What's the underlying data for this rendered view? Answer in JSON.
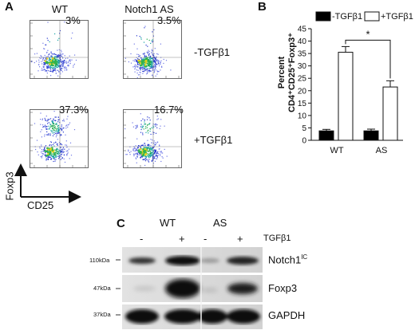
{
  "panel_a": {
    "letter": "A",
    "columns": [
      "WT",
      "Notch1 AS"
    ],
    "rows": [
      "-TGFβ1",
      "+TGFβ1"
    ],
    "percentages": [
      [
        "3%",
        "3.5%"
      ],
      [
        "37.3%",
        "16.7%"
      ]
    ],
    "y_axis_label": "Foxp3",
    "x_axis_label": "CD25"
  },
  "panel_b": {
    "letter": "B",
    "significance": "*"
  },
  "chart_data": {
    "type": "bar",
    "categories": [
      "WT",
      "AS"
    ],
    "series": [
      {
        "name": "-TGFβ1",
        "values": [
          3.8,
          3.8
        ],
        "errors": [
          0.6,
          0.7
        ],
        "fill": "#000000"
      },
      {
        "name": "+TGFβ1",
        "values": [
          35.5,
          21.5
        ],
        "errors": [
          2.3,
          2.5
        ],
        "fill": "#ffffff"
      }
    ],
    "ylabel_line1": "Percent",
    "ylabel_line2": "CD4⁺CD25⁺Foxp3⁺",
    "ylim": [
      0,
      45
    ],
    "yticks": [
      0,
      5,
      10,
      15,
      20,
      25,
      30,
      35,
      40,
      45
    ],
    "legend_position": "top"
  },
  "panel_c": {
    "letter": "C",
    "groups": [
      "WT",
      "AS"
    ],
    "treatment_label": "TGFβ1",
    "lane_signs": [
      "-",
      "+",
      "-",
      "+"
    ],
    "bands": [
      {
        "mw": "110kDa",
        "label": "Notch1",
        "sup": "IC"
      },
      {
        "mw": "47kDa",
        "label": "Foxp3",
        "sup": ""
      },
      {
        "mw": "37kDa",
        "label": "GAPDH",
        "sup": ""
      }
    ]
  }
}
